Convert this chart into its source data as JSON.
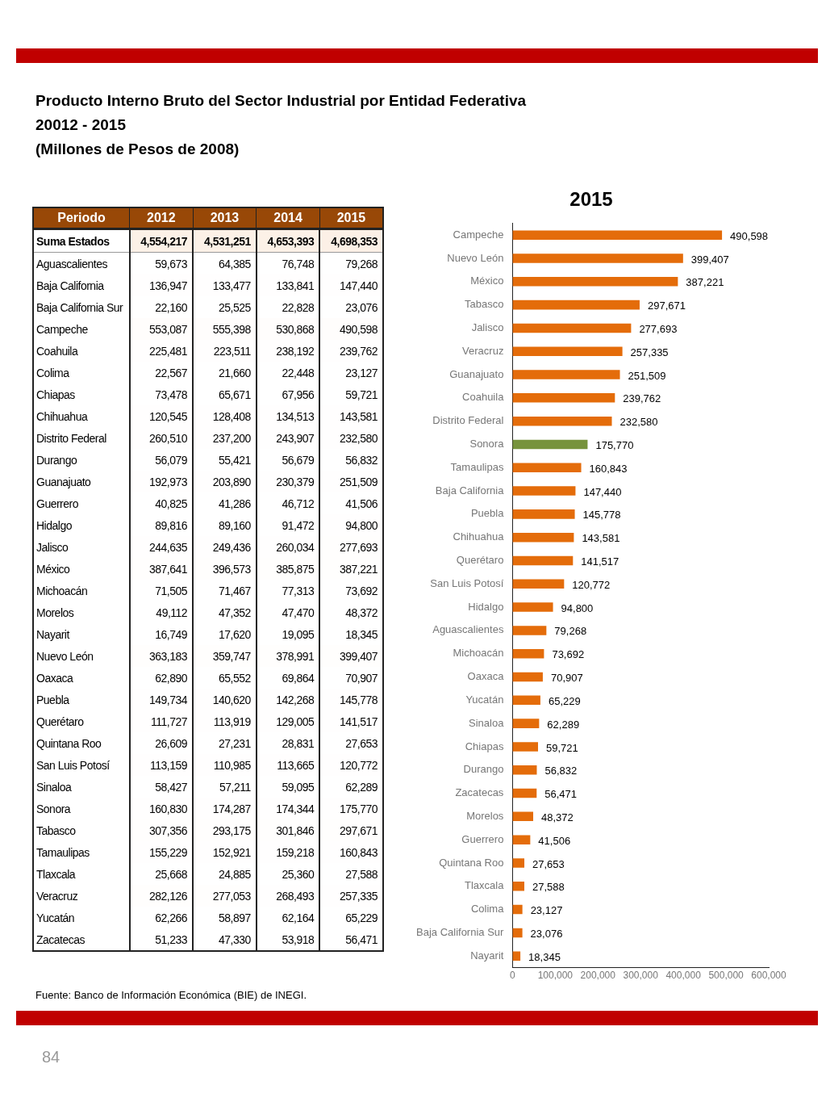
{
  "chart_data": [
    {
      "type": "heatmap",
      "title": "Producto Interno Bruto del Sector Industrial por Entidad Federativa",
      "subtitle": "20012 - 2015\n(Millones de Pesos de 2008)",
      "ylabel": "Periodo",
      "categories": [
        "2012",
        "2013",
        "2014",
        "2015"
      ],
      "y_categories": [
        "Suma Estados",
        "Aguascalientes",
        "Baja California",
        "Baja California Sur",
        "Campeche",
        "Coahuila",
        "Colima",
        "Chiapas",
        "Chihuahua",
        "Distrito Federal",
        "Durango",
        "Guanajuato",
        "Guerrero",
        "Hidalgo",
        "Jalisco",
        "México",
        "Michoacán",
        "Morelos",
        "Nayarit",
        "Nuevo León",
        "Oaxaca",
        "Puebla",
        "Querétaro",
        "Quintana Roo",
        "San Luis Potosí",
        "Sinaloa",
        "Sonora",
        "Tabasco",
        "Tamaulipas",
        "Tlaxcala",
        "Veracruz",
        "Yucatán",
        "Zacatecas"
      ],
      "cells": [
        [
          4554217,
          4531251,
          4653393,
          4698353
        ],
        [
          59673,
          64385,
          76748,
          79268
        ],
        [
          136947,
          133477,
          133841,
          147440
        ],
        [
          22160,
          25525,
          22828,
          23076
        ],
        [
          553087,
          555398,
          530868,
          490598
        ],
        [
          225481,
          223511,
          238192,
          239762
        ],
        [
          22567,
          21660,
          22448,
          23127
        ],
        [
          73478,
          65671,
          67956,
          59721
        ],
        [
          120545,
          128408,
          134513,
          143581
        ],
        [
          260510,
          237200,
          243907,
          232580
        ],
        [
          56079,
          55421,
          56679,
          56832
        ],
        [
          192973,
          203890,
          230379,
          251509
        ],
        [
          40825,
          41286,
          46712,
          41506
        ],
        [
          89816,
          89160,
          91472,
          94800
        ],
        [
          244635,
          249436,
          260034,
          277693
        ],
        [
          387641,
          396573,
          385875,
          387221
        ],
        [
          71505,
          71467,
          77313,
          73692
        ],
        [
          49112,
          47352,
          47470,
          48372
        ],
        [
          16749,
          17620,
          19095,
          18345
        ],
        [
          363183,
          359747,
          378991,
          399407
        ],
        [
          62890,
          65552,
          69864,
          70907
        ],
        [
          149734,
          140620,
          142268,
          145778
        ],
        [
          111727,
          113919,
          129005,
          141517
        ],
        [
          26609,
          27231,
          28831,
          27653
        ],
        [
          113159,
          110985,
          113665,
          120772
        ],
        [
          58427,
          57211,
          59095,
          62289
        ],
        [
          160830,
          174287,
          174344,
          175770
        ],
        [
          307356,
          293175,
          301846,
          297671
        ],
        [
          155229,
          152921,
          159218,
          160843
        ],
        [
          25668,
          24885,
          25360,
          27588
        ],
        [
          282126,
          277053,
          268493,
          257335
        ],
        [
          62266,
          58897,
          62164,
          65229
        ],
        [
          51233,
          47330,
          53918,
          56471
        ]
      ],
      "cell_labels": [
        [
          "4,554,217",
          "4,531,251",
          "4,653,393",
          "4,698,353"
        ],
        [
          "59,673",
          "64,385",
          "76,748",
          "79,268"
        ],
        [
          "136,947",
          "133,477",
          "133,841",
          "147,440"
        ],
        [
          "22,160",
          "25,525",
          "22,828",
          "23,076"
        ],
        [
          "553,087",
          "555,398",
          "530,868",
          "490,598"
        ],
        [
          "225,481",
          "223,511",
          "238,192",
          "239,762"
        ],
        [
          "22,567",
          "21,660",
          "22,448",
          "23,127"
        ],
        [
          "73,478",
          "65,671",
          "67,956",
          "59,721"
        ],
        [
          "120,545",
          "128,408",
          "134,513",
          "143,581"
        ],
        [
          "260,510",
          "237,200",
          "243,907",
          "232,580"
        ],
        [
          "56,079",
          "55,421",
          "56,679",
          "56,832"
        ],
        [
          "192,973",
          "203,890",
          "230,379",
          "251,509"
        ],
        [
          "40,825",
          "41,286",
          "46,712",
          "41,506"
        ],
        [
          "89,816",
          "89,160",
          "91,472",
          "94,800"
        ],
        [
          "244,635",
          "249,436",
          "260,034",
          "277,693"
        ],
        [
          "387,641",
          "396,573",
          "385,875",
          "387,221"
        ],
        [
          "71,505",
          "71,467",
          "77,313",
          "73,692"
        ],
        [
          "49,112",
          "47,352",
          "47,470",
          "48,372"
        ],
        [
          "16,749",
          "17,620",
          "19,095",
          "18,345"
        ],
        [
          "363,183",
          "359,747",
          "378,991",
          "399,407"
        ],
        [
          "62,890",
          "65,552",
          "69,864",
          "70,907"
        ],
        [
          "149,734",
          "140,620",
          "142,268",
          "145,778"
        ],
        [
          "111,727",
          "113,919",
          "129,005",
          "141,517"
        ],
        [
          "26,609",
          "27,231",
          "28,831",
          "27,653"
        ],
        [
          "113,159",
          "110,985",
          "113,665",
          "120,772"
        ],
        [
          "58,427",
          "57,211",
          "59,095",
          "62,289"
        ],
        [
          "160,830",
          "174,287",
          "174,344",
          "175,770"
        ],
        [
          "307,356",
          "293,175",
          "301,846",
          "297,671"
        ],
        [
          "155,229",
          "152,921",
          "159,218",
          "160,843"
        ],
        [
          "25,668",
          "24,885",
          "25,360",
          "27,588"
        ],
        [
          "282,126",
          "277,053",
          "268,493",
          "257,335"
        ],
        [
          "62,266",
          "58,897",
          "62,164",
          "65,229"
        ],
        [
          "51,233",
          "47,330",
          "53,918",
          "56,471"
        ]
      ],
      "annotations": [
        "Fuente: Banco de Información Económica (BIE) de INEGI.",
        "84"
      ]
    },
    {
      "type": "bar",
      "title": "2015",
      "orientation": "horizontal",
      "categories": [
        "Campeche",
        "Nuevo León",
        "México",
        "Tabasco",
        "Jalisco",
        "Veracruz",
        "Guanajuato",
        "Coahuila",
        "Distrito Federal",
        "Sonora",
        "Tamaulipas",
        "Baja California",
        "Puebla",
        "Chihuahua",
        "Querétaro",
        "San Luis Potosí",
        "Hidalgo",
        "Aguascalientes",
        "Michoacán",
        "Oaxaca",
        "Yucatán",
        "Sinaloa",
        "Chiapas",
        "Durango",
        "Zacatecas",
        "Morelos",
        "Guerrero",
        "Quintana Roo",
        "Tlaxcala",
        "Colima",
        "Baja California Sur",
        "Nayarit"
      ],
      "values": [
        490598,
        399407,
        387221,
        297671,
        277693,
        257335,
        251509,
        239762,
        232580,
        175770,
        160843,
        147440,
        145778,
        143581,
        141517,
        120772,
        94800,
        79268,
        73692,
        70907,
        65229,
        62289,
        59721,
        56832,
        56471,
        48372,
        41506,
        27653,
        27588,
        23127,
        23076,
        18345
      ],
      "colors": [
        "#e46c0a",
        "#e46c0a",
        "#e46c0a",
        "#e46c0a",
        "#e46c0a",
        "#e46c0a",
        "#e46c0a",
        "#e46c0a",
        "#e46c0a",
        "#77933c",
        "#e46c0a",
        "#e46c0a",
        "#e46c0a",
        "#e46c0a",
        "#e46c0a",
        "#e46c0a",
        "#e46c0a",
        "#e46c0a",
        "#e46c0a",
        "#e46c0a",
        "#e46c0a",
        "#e46c0a",
        "#e46c0a",
        "#e46c0a",
        "#e46c0a",
        "#e46c0a",
        "#e46c0a",
        "#e46c0a",
        "#e46c0a",
        "#e46c0a",
        "#e46c0a",
        "#e46c0a"
      ],
      "xlim": [
        0,
        600000
      ],
      "xticks": [
        0,
        {
          "value": 100000,
          "label": "100,000"
        },
        {
          "value": 200000,
          "label": "200,000"
        },
        {
          "value": 300000,
          "label": "300,000"
        },
        {
          "value": 400000,
          "label": "400,000"
        },
        {
          "value": 500000,
          "label": "500,000"
        },
        {
          "value": 600000,
          "label": "600,000"
        }
      ],
      "value_labels": [
        "490,598",
        "399,407",
        "387,221",
        "297,671",
        "277,693",
        "257,335",
        "251,509",
        "239,762",
        "232,580",
        "175,770",
        "160,843",
        "147,440",
        "145,778",
        "143,581",
        "141,517",
        "120,772",
        "94,800",
        "79,268",
        "73,692",
        "70,907",
        "65,229",
        "62,289",
        "59,721",
        "56,832",
        "56,471",
        "48,372",
        "41,506",
        "27,653",
        "27,588",
        "23,127",
        "23,076",
        "18,345"
      ],
      "data_labels": true,
      "grid": false,
      "legend": false
    }
  ]
}
